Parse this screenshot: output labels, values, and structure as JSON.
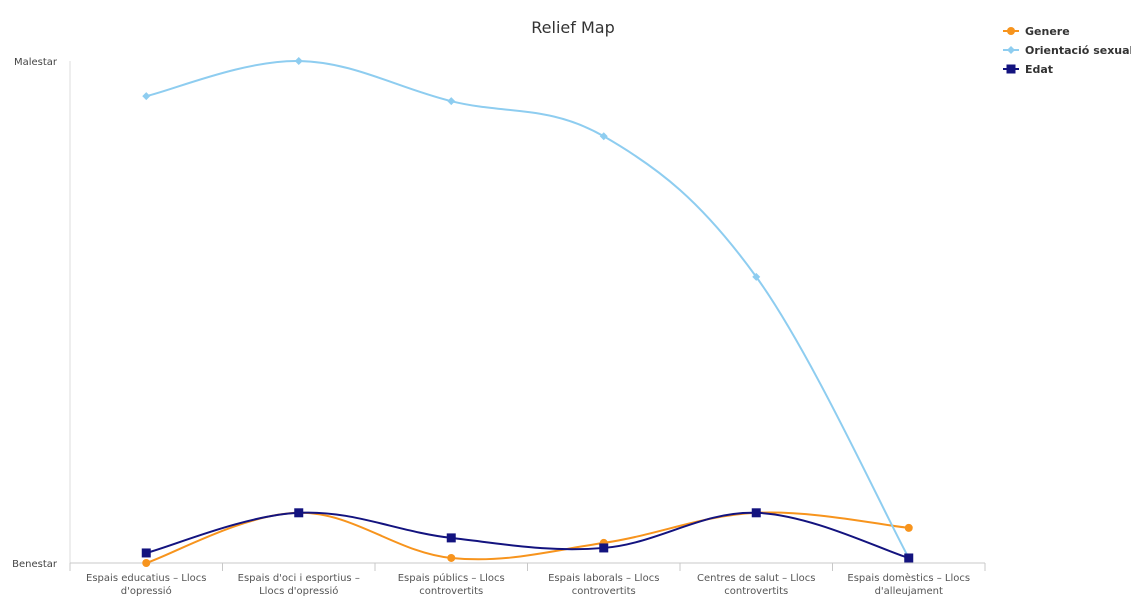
{
  "chart_data": {
    "type": "line",
    "title": "Relief Map",
    "y_tick_labels": [
      "Benestar",
      "Malestar"
    ],
    "ylim": [
      0,
      100
    ],
    "categories": [
      [
        "Espais educatius – Llocs",
        "d'opressió"
      ],
      [
        "Espais d'oci i esportius –",
        "Llocs d'opressió"
      ],
      [
        "Espais públics – Llocs",
        "controvertits"
      ],
      [
        "Espais laborals – Llocs",
        "controvertits"
      ],
      [
        "Centres de salut – Llocs",
        "controvertits"
      ],
      [
        "Espais domèstics – Llocs",
        "d'alleujament"
      ]
    ],
    "series": [
      {
        "name": "Genere",
        "color": "#f7941d",
        "marker": "circle",
        "values": [
          0,
          10,
          1,
          4,
          10,
          7
        ]
      },
      {
        "name": "Orientació sexual",
        "color": "#8ecdf0",
        "marker": "diamond",
        "values": [
          93,
          100,
          92,
          85,
          57,
          1
        ]
      },
      {
        "name": "Edat",
        "color": "#13137f",
        "marker": "square",
        "values": [
          2,
          10,
          5,
          3,
          10,
          1
        ]
      }
    ],
    "legend_position": "top-right",
    "grid": false
  }
}
